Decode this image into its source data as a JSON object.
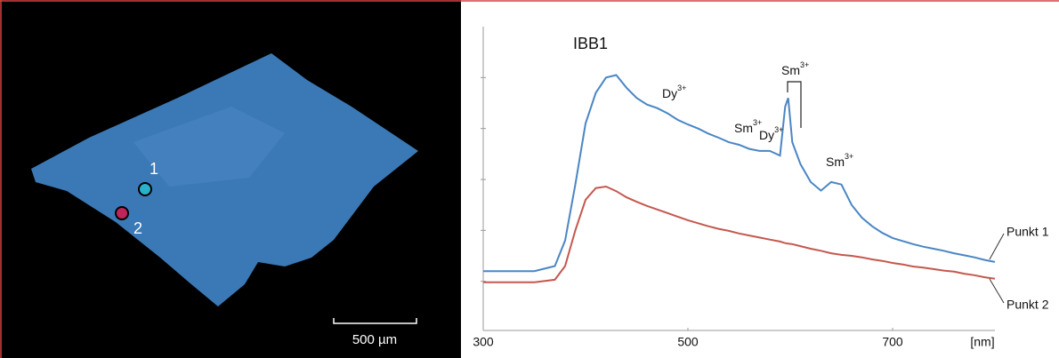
{
  "image": {
    "markers": [
      "1",
      "2"
    ],
    "scale_bar": "500 µm"
  },
  "chart_data": {
    "type": "line",
    "x": [
      300,
      350,
      370,
      380,
      390,
      400,
      410,
      420,
      430,
      440,
      450,
      460,
      470,
      480,
      490,
      500,
      510,
      520,
      530,
      540,
      550,
      560,
      570,
      580,
      590,
      595,
      598,
      602,
      610,
      620,
      630,
      640,
      650,
      660,
      670,
      680,
      690,
      700,
      710,
      720,
      730,
      740,
      750,
      760,
      770,
      780,
      790,
      800
    ],
    "series": [
      {
        "name": "Punkt 1",
        "color": "#4a86c5",
        "values": [
          1.2,
          1.2,
          1.3,
          1.8,
          2.9,
          4.1,
          4.7,
          5.0,
          5.05,
          4.8,
          4.6,
          4.47,
          4.4,
          4.3,
          4.17,
          4.08,
          4.0,
          3.9,
          3.82,
          3.73,
          3.68,
          3.6,
          3.56,
          3.56,
          3.47,
          4.43,
          4.6,
          3.73,
          3.3,
          2.95,
          2.78,
          2.95,
          2.9,
          2.5,
          2.25,
          2.08,
          1.95,
          1.85,
          1.79,
          1.73,
          1.68,
          1.64,
          1.6,
          1.55,
          1.51,
          1.47,
          1.42,
          1.38
        ]
      },
      {
        "name": "Punkt 2",
        "color": "#c4584f",
        "values": [
          0.98,
          0.98,
          1.03,
          1.3,
          2.0,
          2.6,
          2.83,
          2.86,
          2.77,
          2.65,
          2.56,
          2.48,
          2.41,
          2.34,
          2.27,
          2.2,
          2.14,
          2.08,
          2.03,
          1.99,
          1.94,
          1.9,
          1.86,
          1.82,
          1.78,
          1.75,
          1.74,
          1.73,
          1.69,
          1.64,
          1.6,
          1.55,
          1.52,
          1.5,
          1.47,
          1.43,
          1.4,
          1.36,
          1.33,
          1.29,
          1.27,
          1.24,
          1.21,
          1.19,
          1.15,
          1.12,
          1.08,
          1.05
        ]
      }
    ],
    "xlim": [
      300,
      800
    ],
    "xticks": [
      300,
      500,
      700
    ],
    "x_label": "[nm]",
    "ylim": [
      0,
      6
    ],
    "yticks": [
      1,
      2,
      3,
      4,
      5
    ],
    "annotations": [
      {
        "text": "IBB1"
      },
      {
        "text": "Dy",
        "sup": "3+"
      },
      {
        "text": "Sm",
        "sup": "3+"
      },
      {
        "text": "Dy",
        "sup": "3+"
      },
      {
        "text": "Sm",
        "sup": "3+"
      },
      {
        "text": "Sm",
        "sup": "3+"
      }
    ]
  }
}
